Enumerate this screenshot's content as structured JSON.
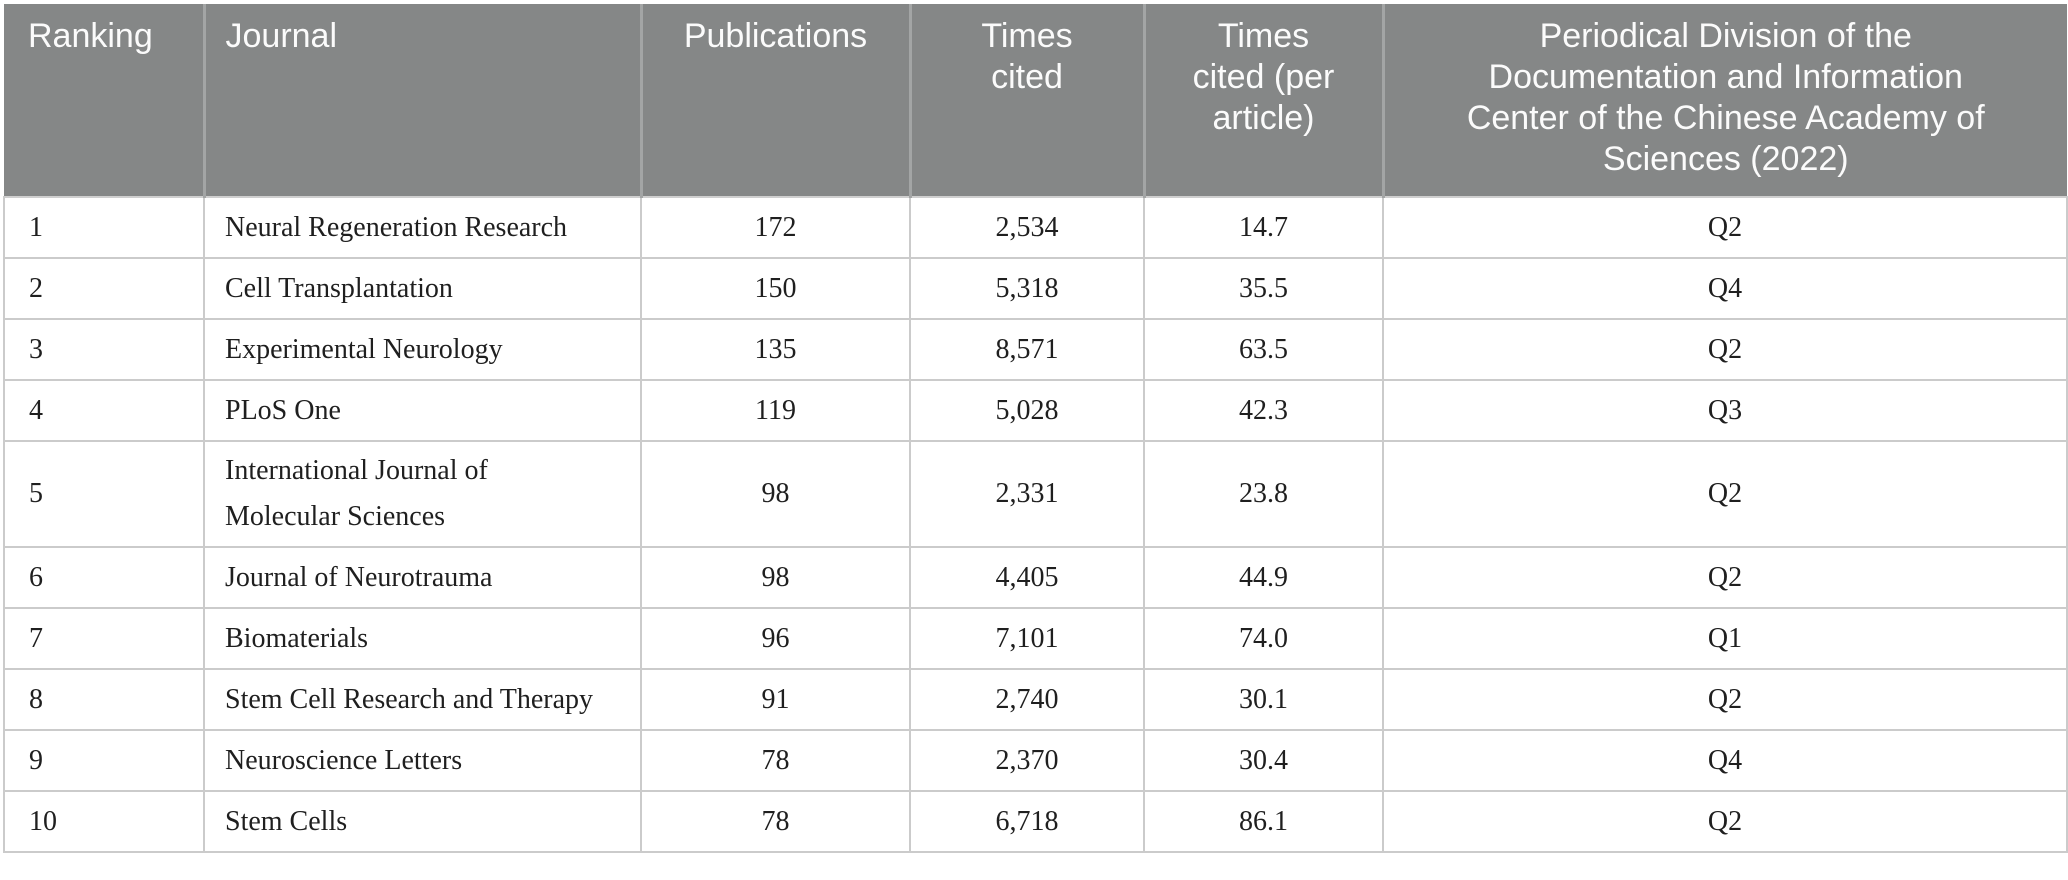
{
  "page": {
    "background": "#ffffff"
  },
  "table": {
    "header": {
      "bg_color": "#858787",
      "text_color": "#fbfbfb",
      "divider_color": "#a3a5a5",
      "columns": [
        {
          "key": "ranking",
          "label": "Ranking"
        },
        {
          "key": "journal",
          "label": "Journal"
        },
        {
          "key": "publications",
          "label": "Publications"
        },
        {
          "key": "times_cited",
          "label": "Times\ncited"
        },
        {
          "key": "times_cited_per_article",
          "label": "Times\ncited (per\narticle)"
        },
        {
          "key": "division",
          "label": "Periodical Division of the\nDocumentation and Information\nCenter of the Chinese Academy of\nSciences (2022)"
        }
      ]
    },
    "body": {
      "text_color": "#1f1f1f",
      "border_color": "#cbcbcb"
    },
    "rows": [
      {
        "ranking": "1",
        "journal": "Neural Regeneration Research",
        "publications": "172",
        "times_cited": "2,534",
        "times_cited_per_article": "14.7",
        "division": "Q2"
      },
      {
        "ranking": "2",
        "journal": "Cell Transplantation",
        "publications": "150",
        "times_cited": "5,318",
        "times_cited_per_article": "35.5",
        "division": "Q4"
      },
      {
        "ranking": "3",
        "journal": "Experimental Neurology",
        "publications": "135",
        "times_cited": "8,571",
        "times_cited_per_article": "63.5",
        "division": "Q2"
      },
      {
        "ranking": "4",
        "journal": "PLoS One",
        "publications": "119",
        "times_cited": "5,028",
        "times_cited_per_article": "42.3",
        "division": "Q3"
      },
      {
        "ranking": "5",
        "journal": "International Journal of\nMolecular Sciences",
        "publications": "98",
        "times_cited": "2,331",
        "times_cited_per_article": "23.8",
        "division": "Q2"
      },
      {
        "ranking": "6",
        "journal": "Journal of Neurotrauma",
        "publications": "98",
        "times_cited": "4,405",
        "times_cited_per_article": "44.9",
        "division": "Q2"
      },
      {
        "ranking": "7",
        "journal": "Biomaterials",
        "publications": "96",
        "times_cited": "7,101",
        "times_cited_per_article": "74.0",
        "division": "Q1"
      },
      {
        "ranking": "8",
        "journal": "Stem Cell Research and Therapy",
        "publications": "91",
        "times_cited": "2,740",
        "times_cited_per_article": "30.1",
        "division": "Q2"
      },
      {
        "ranking": "9",
        "journal": "Neuroscience Letters",
        "publications": "78",
        "times_cited": "2,370",
        "times_cited_per_article": "30.4",
        "division": "Q4"
      },
      {
        "ranking": "10",
        "journal": "Stem Cells",
        "publications": "78",
        "times_cited": "6,718",
        "times_cited_per_article": "86.1",
        "division": "Q2"
      }
    ]
  }
}
